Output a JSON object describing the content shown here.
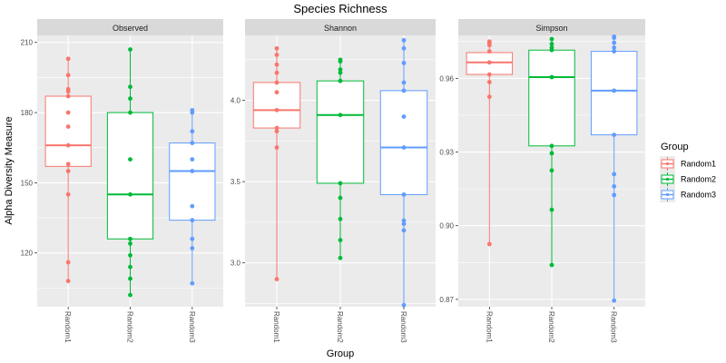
{
  "chart_data": {
    "type": "boxplot",
    "title": "Species Richness",
    "xlabel": "Group",
    "ylabel": "Alpha Diversity Measure",
    "grid": true,
    "categories": [
      "Random1",
      "Random2",
      "Random3"
    ],
    "legend": {
      "title": "Group",
      "placement": "right",
      "entries": [
        "Random1",
        "Random2",
        "Random3"
      ]
    },
    "colors": {
      "Random1": "#F8766D",
      "Random2": "#00BA38",
      "Random3": "#619CFF"
    },
    "panels": [
      {
        "name": "Observed",
        "ylim": [
          97,
          213
        ],
        "ticks": [
          120,
          150,
          180,
          210
        ],
        "tick_labels": [
          "120",
          "150",
          "180",
          "210"
        ],
        "boxes": [
          {
            "group": "Random1",
            "q1": 157,
            "median": 166,
            "q3": 187,
            "whisker_low": 108,
            "whisker_high": 203,
            "points": [
              108,
              116,
              145,
              155,
              158,
              166,
              174,
              180,
              187,
              189,
              190,
              196,
              203
            ]
          },
          {
            "group": "Random2",
            "q1": 126,
            "median": 145,
            "q3": 180,
            "whisker_low": 102,
            "whisker_high": 207,
            "points": [
              102,
              109,
              114,
              119,
              124,
              126,
              145,
              160,
              180,
              186,
              191,
              207
            ]
          },
          {
            "group": "Random3",
            "q1": 134,
            "median": 155,
            "q3": 167,
            "whisker_low": 107,
            "whisker_high": 181,
            "points": [
              107,
              122,
              126,
              134,
              140,
              155,
              160,
              167,
              172,
              180,
              181
            ]
          }
        ]
      },
      {
        "name": "Shannon",
        "ylim": [
          2.73,
          4.4
        ],
        "ticks": [
          3.0,
          3.5,
          4.0
        ],
        "tick_labels": [
          "3.0",
          "3.5",
          "4.0"
        ],
        "boxes": [
          {
            "group": "Random1",
            "q1": 3.83,
            "median": 3.94,
            "q3": 4.11,
            "whisker_low": 2.9,
            "whisker_high": 4.32,
            "points": [
              2.9,
              3.71,
              3.81,
              3.83,
              3.94,
              4.05,
              4.11,
              4.17,
              4.22,
              4.28,
              4.32
            ]
          },
          {
            "group": "Random2",
            "q1": 3.49,
            "median": 3.91,
            "q3": 4.12,
            "whisker_low": 3.03,
            "whisker_high": 4.25,
            "points": [
              3.03,
              3.14,
              3.27,
              3.4,
              3.49,
              3.91,
              4.12,
              4.17,
              4.19,
              4.24,
              4.25
            ]
          },
          {
            "group": "Random3",
            "q1": 3.42,
            "median": 3.71,
            "q3": 4.06,
            "whisker_low": 2.74,
            "whisker_high": 4.37,
            "points": [
              2.74,
              3.2,
              3.24,
              3.26,
              3.42,
              3.71,
              3.9,
              4.06,
              4.11,
              4.23,
              4.32,
              4.37
            ]
          }
        ]
      },
      {
        "name": "Simpson",
        "ylim": [
          0.867,
          0.9775
        ],
        "ticks": [
          0.87,
          0.9,
          0.93,
          0.96
        ],
        "tick_labels": [
          "0.87",
          "0.90",
          "0.93",
          "0.96"
        ],
        "boxes": [
          {
            "group": "Random1",
            "q1": 0.9616,
            "median": 0.9665,
            "q3": 0.9705,
            "whisker_low": 0.8925,
            "whisker_high": 0.975,
            "points": [
              0.8925,
              0.9525,
              0.9585,
              0.9616,
              0.9665,
              0.971,
              0.9735,
              0.9745,
              0.975
            ]
          },
          {
            "group": "Random2",
            "q1": 0.9325,
            "median": 0.9605,
            "q3": 0.9715,
            "whisker_low": 0.884,
            "whisker_high": 0.976,
            "points": [
              0.884,
              0.9065,
              0.9225,
              0.9295,
              0.9325,
              0.9605,
              0.9715,
              0.9725,
              0.974,
              0.976
            ]
          },
          {
            "group": "Random3",
            "q1": 0.937,
            "median": 0.955,
            "q3": 0.971,
            "whisker_low": 0.8695,
            "whisker_high": 0.977,
            "points": [
              0.8695,
              0.9125,
              0.916,
              0.921,
              0.937,
              0.955,
              0.971,
              0.9725,
              0.9745,
              0.9765,
              0.977
            ]
          }
        ]
      }
    ]
  }
}
